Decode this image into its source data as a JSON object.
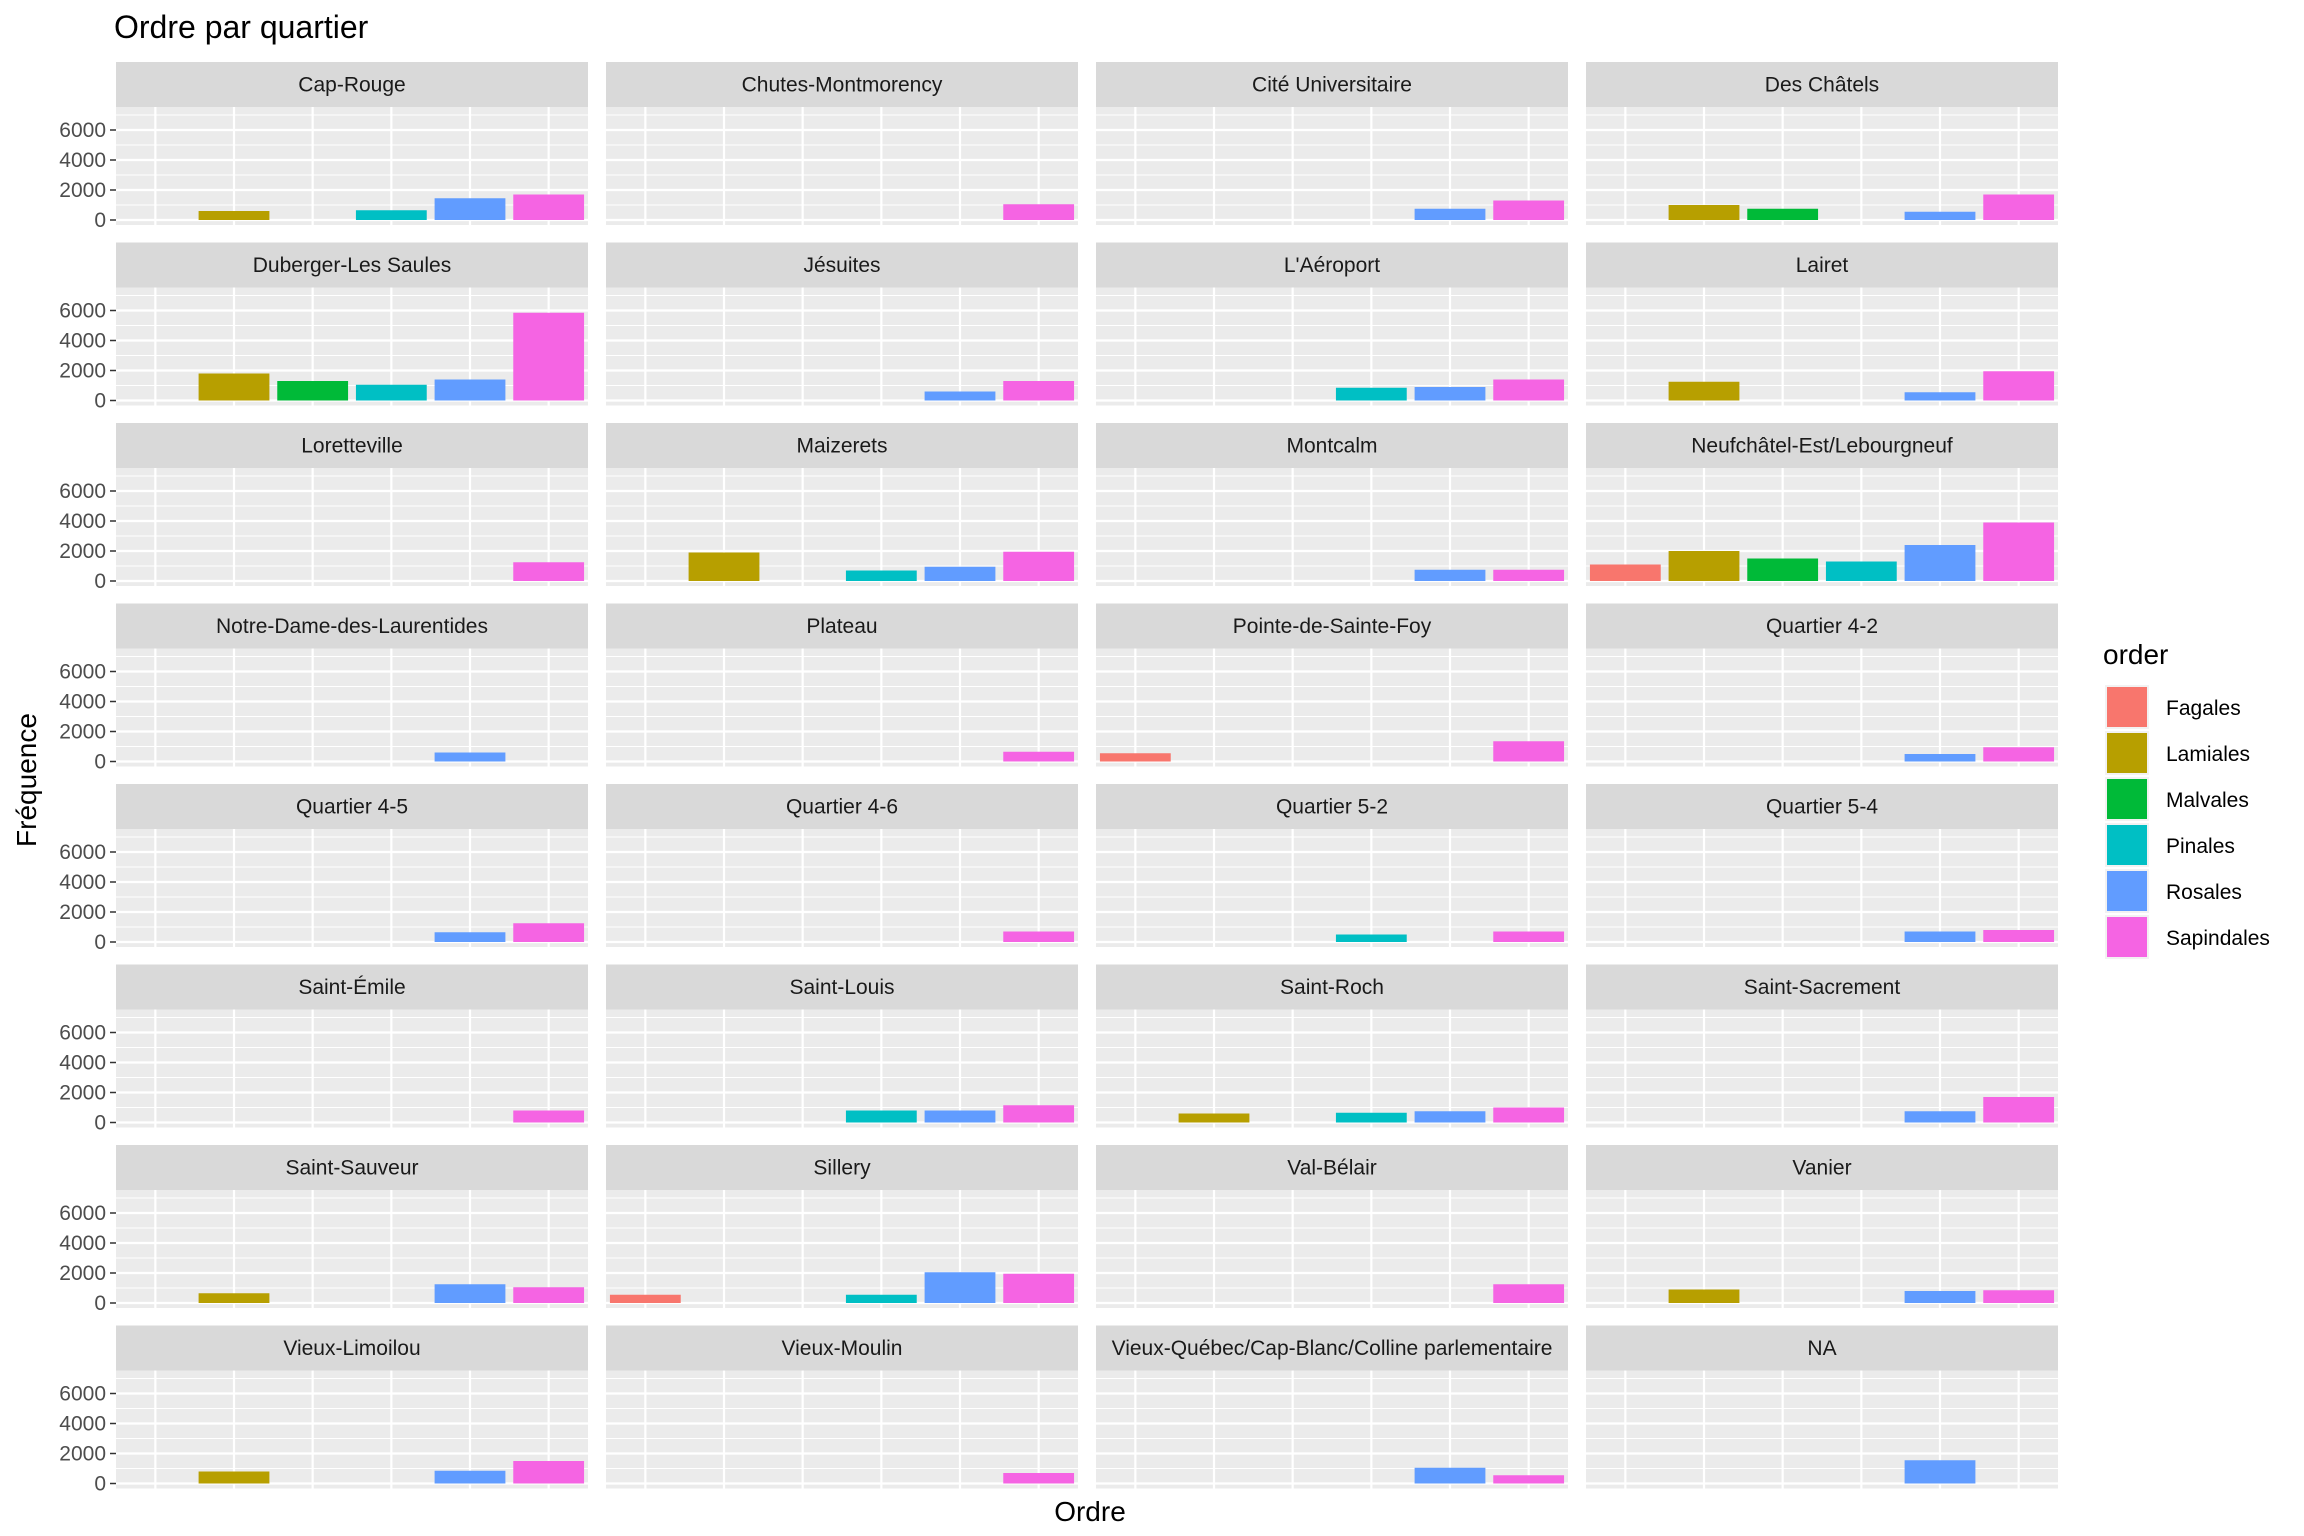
{
  "chart_data": {
    "type": "bar",
    "title": "Ordre par quartier",
    "xlabel": "Ordre",
    "ylabel": "Fréquence",
    "ylim": [
      0,
      7200
    ],
    "yticks": [
      "0",
      "2000",
      "4000",
      "6000"
    ],
    "facet_columns": 4,
    "legend": {
      "title": "order",
      "placement": "right",
      "entries": [
        {
          "name": "Fagales",
          "color": "#F8766D"
        },
        {
          "name": "Lamiales",
          "color": "#B79F00"
        },
        {
          "name": "Malvales",
          "color": "#00BA38"
        },
        {
          "name": "Pinales",
          "color": "#00BFC4"
        },
        {
          "name": "Rosales",
          "color": "#619CFF"
        },
        {
          "name": "Sapindales",
          "color": "#F564E3"
        }
      ]
    },
    "categories": [
      "Fagales",
      "Lamiales",
      "Malvales",
      "Pinales",
      "Rosales",
      "Sapindales"
    ],
    "panels": [
      {
        "label": "Cap-Rouge",
        "values": [
          0,
          600,
          0,
          650,
          1450,
          1700
        ]
      },
      {
        "label": "Chutes-Montmorency",
        "values": [
          0,
          0,
          0,
          0,
          0,
          1050
        ]
      },
      {
        "label": "Cité Universitaire",
        "values": [
          0,
          0,
          0,
          0,
          750,
          1300
        ]
      },
      {
        "label": "Des Châtels",
        "values": [
          0,
          1000,
          750,
          0,
          550,
          1700
        ]
      },
      {
        "label": "Duberger-Les Saules",
        "values": [
          0,
          1800,
          1300,
          1050,
          1400,
          5850
        ]
      },
      {
        "label": "Jésuites",
        "values": [
          0,
          0,
          0,
          0,
          600,
          1300
        ]
      },
      {
        "label": "L'Aéroport",
        "values": [
          0,
          0,
          0,
          850,
          900,
          1400
        ]
      },
      {
        "label": "Lairet",
        "values": [
          0,
          1250,
          0,
          0,
          550,
          1950
        ]
      },
      {
        "label": "Loretteville",
        "values": [
          0,
          0,
          0,
          0,
          0,
          1250
        ]
      },
      {
        "label": "Maizerets",
        "values": [
          0,
          1900,
          0,
          700,
          950,
          1950
        ]
      },
      {
        "label": "Montcalm",
        "values": [
          0,
          0,
          0,
          0,
          750,
          750
        ]
      },
      {
        "label": "Neufchâtel-Est/Lebourgneuf",
        "values": [
          1100,
          2000,
          1500,
          1300,
          2400,
          3900
        ]
      },
      {
        "label": "Notre-Dame-des-Laurentides",
        "values": [
          0,
          0,
          0,
          0,
          600,
          0
        ]
      },
      {
        "label": "Plateau",
        "values": [
          0,
          0,
          0,
          0,
          0,
          650
        ]
      },
      {
        "label": "Pointe-de-Sainte-Foy",
        "values": [
          550,
          0,
          0,
          0,
          0,
          1350
        ]
      },
      {
        "label": "Quartier 4-2",
        "values": [
          0,
          0,
          0,
          0,
          500,
          950
        ]
      },
      {
        "label": "Quartier 4-5",
        "values": [
          0,
          0,
          0,
          0,
          650,
          1250
        ]
      },
      {
        "label": "Quartier 4-6",
        "values": [
          0,
          0,
          0,
          0,
          0,
          700
        ]
      },
      {
        "label": "Quartier 5-2",
        "values": [
          0,
          0,
          0,
          500,
          0,
          700
        ]
      },
      {
        "label": "Quartier 5-4",
        "values": [
          0,
          0,
          0,
          0,
          700,
          800
        ]
      },
      {
        "label": "Saint-Émile",
        "values": [
          0,
          0,
          0,
          0,
          0,
          800
        ]
      },
      {
        "label": "Saint-Louis",
        "values": [
          0,
          0,
          0,
          800,
          800,
          1150
        ]
      },
      {
        "label": "Saint-Roch",
        "values": [
          0,
          600,
          0,
          650,
          750,
          1000
        ]
      },
      {
        "label": "Saint-Sacrement",
        "values": [
          0,
          0,
          0,
          0,
          750,
          1700
        ]
      },
      {
        "label": "Saint-Sauveur",
        "values": [
          0,
          650,
          0,
          0,
          1250,
          1050
        ]
      },
      {
        "label": "Sillery",
        "values": [
          550,
          0,
          0,
          550,
          2050,
          1950
        ]
      },
      {
        "label": "Val-Bélair",
        "values": [
          0,
          0,
          0,
          0,
          0,
          1250
        ]
      },
      {
        "label": "Vanier",
        "values": [
          0,
          900,
          0,
          0,
          800,
          850
        ]
      },
      {
        "label": "Vieux-Limoilou",
        "values": [
          0,
          800,
          0,
          0,
          850,
          1500
        ]
      },
      {
        "label": "Vieux-Moulin",
        "values": [
          0,
          0,
          0,
          0,
          0,
          700
        ]
      },
      {
        "label": "Vieux-Québec/Cap-Blanc/Colline parlementaire",
        "values": [
          0,
          0,
          0,
          0,
          1050,
          550
        ]
      },
      {
        "label": "NA",
        "values": [
          0,
          0,
          0,
          0,
          1550,
          0
        ]
      }
    ]
  }
}
